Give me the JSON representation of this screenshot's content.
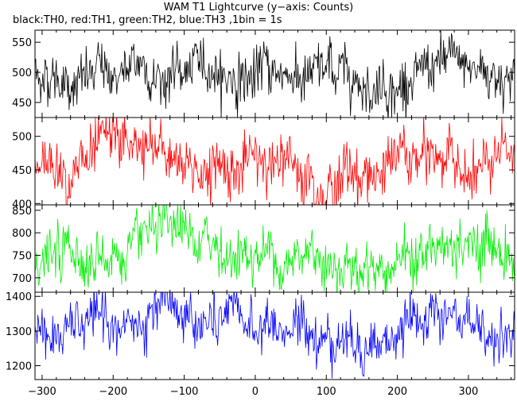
{
  "title": "WAM T1 Lightcurve (y−axis: Counts)",
  "subtitle": "black:TH0, red:TH1, green:TH2, blue:TH3 ,1bin = 1s",
  "chart_data": {
    "type": "line",
    "title": "WAM T1 Lightcurve (y−axis: Counts)",
    "subtitle": "black:TH0, red:TH1, green:TH2, blue:TH3 ,1bin = 1s",
    "xlabel": "",
    "ylabel": "Counts",
    "xlim": [
      -310,
      365
    ],
    "x_ticks": [
      -300,
      -200,
      -100,
      0,
      100,
      200,
      300
    ],
    "bin_seconds": 1,
    "panels": [
      {
        "name": "TH0",
        "color": "#000000",
        "ylim": [
          425,
          570
        ],
        "y_ticks": [
          450,
          500,
          550
        ],
        "mean": 498,
        "spread": 20
      },
      {
        "name": "TH1",
        "color": "#ff0000",
        "ylim": [
          398,
          528
        ],
        "y_ticks": [
          400,
          450,
          500
        ],
        "mean": 458,
        "spread": 20
      },
      {
        "name": "TH2",
        "color": "#00ee00",
        "ylim": [
          668,
          862
        ],
        "y_ticks": [
          700,
          750,
          800,
          850
        ],
        "mean": 752,
        "spread": 28
      },
      {
        "name": "TH3",
        "color": "#0000ff",
        "ylim": [
          1160,
          1412
        ],
        "y_ticks": [
          1200,
          1300,
          1400
        ],
        "mean": 1298,
        "spread": 35
      }
    ]
  }
}
